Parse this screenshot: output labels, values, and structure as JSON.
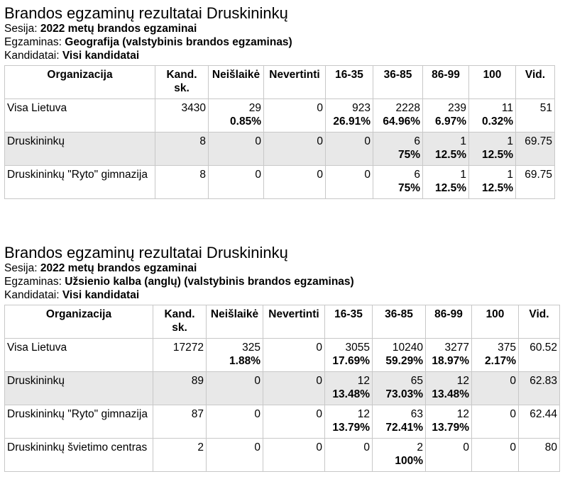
{
  "labels": {
    "session": "Sesija:",
    "exam": "Egzaminas:",
    "candidates": "Kandidatai:"
  },
  "columns": [
    "Organizacija",
    "Kand. sk.",
    "Neišlaikė",
    "Nevertinti",
    "16-35",
    "36-85",
    "86-99",
    "100",
    "Vid."
  ],
  "sections": [
    {
      "title": "Brandos egzaminų rezultatai Druskininkų",
      "session": "2022 metų brandos egzaminai",
      "exam": "Geografija (valstybinis brandos egzaminas)",
      "candidates": "Visi kandidatai",
      "rows": [
        {
          "org": "Visa Lietuva",
          "total": "3430",
          "cells": [
            [
              "29",
              "0.85%"
            ],
            [
              "0",
              ""
            ],
            [
              "923",
              "26.91%"
            ],
            [
              "2228",
              "64.96%"
            ],
            [
              "239",
              "6.97%"
            ],
            [
              "11",
              "0.32%"
            ]
          ],
          "avg": "51",
          "shaded": false
        },
        {
          "org": "Druskininkų",
          "total": "8",
          "cells": [
            [
              "0",
              ""
            ],
            [
              "0",
              ""
            ],
            [
              "0",
              ""
            ],
            [
              "6",
              "75%"
            ],
            [
              "1",
              "12.5%"
            ],
            [
              "1",
              "12.5%"
            ]
          ],
          "avg": "69.75",
          "shaded": true
        },
        {
          "org": "Druskininkų \"Ryto\" gimnazija",
          "total": "8",
          "cells": [
            [
              "0",
              ""
            ],
            [
              "0",
              ""
            ],
            [
              "0",
              ""
            ],
            [
              "6",
              "75%"
            ],
            [
              "1",
              "12.5%"
            ],
            [
              "1",
              "12.5%"
            ]
          ],
          "avg": "69.75",
          "shaded": false
        }
      ]
    },
    {
      "title": "Brandos egzaminų rezultatai Druskininkų",
      "session": "2022 metų brandos egzaminai",
      "exam": "Užsienio kalba (anglų) (valstybinis brandos egzaminas)",
      "candidates": "Visi kandidatai",
      "rows": [
        {
          "org": "Visa Lietuva",
          "total": "17272",
          "cells": [
            [
              "325",
              "1.88%"
            ],
            [
              "0",
              ""
            ],
            [
              "3055",
              "17.69%"
            ],
            [
              "10240",
              "59.29%"
            ],
            [
              "3277",
              "18.97%"
            ],
            [
              "375",
              "2.17%"
            ]
          ],
          "avg": "60.52",
          "shaded": false
        },
        {
          "org": "Druskininkų",
          "total": "89",
          "cells": [
            [
              "0",
              ""
            ],
            [
              "0",
              ""
            ],
            [
              "12",
              "13.48%"
            ],
            [
              "65",
              "73.03%"
            ],
            [
              "12",
              "13.48%"
            ],
            [
              "0",
              ""
            ]
          ],
          "avg": "62.83",
          "shaded": true
        },
        {
          "org": "Druskininkų \"Ryto\" gimnazija",
          "total": "87",
          "cells": [
            [
              "0",
              ""
            ],
            [
              "0",
              ""
            ],
            [
              "12",
              "13.79%"
            ],
            [
              "63",
              "72.41%"
            ],
            [
              "12",
              "13.79%"
            ],
            [
              "0",
              ""
            ]
          ],
          "avg": "62.44",
          "shaded": false
        },
        {
          "org": "Druskininkų švietimo centras",
          "total": "2",
          "cells": [
            [
              "0",
              ""
            ],
            [
              "0",
              ""
            ],
            [
              "0",
              ""
            ],
            [
              "2",
              "100%"
            ],
            [
              "0",
              ""
            ],
            [
              "0",
              ""
            ]
          ],
          "avg": "80",
          "shaded": false
        }
      ]
    }
  ]
}
